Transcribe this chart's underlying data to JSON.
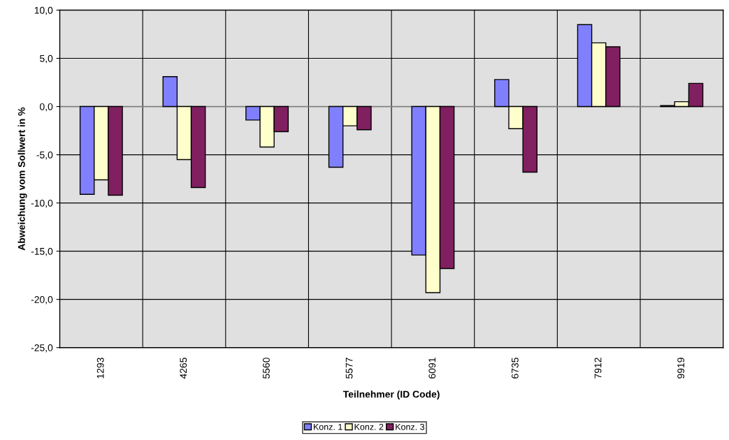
{
  "chart_data": {
    "type": "bar",
    "xlabel": "Teilnehmer (ID Code)",
    "ylabel": "Abweichung vom Sollwert in %",
    "categories": [
      "1293",
      "4265",
      "5560",
      "5577",
      "6091",
      "6735",
      "7912",
      "9919"
    ],
    "series": [
      {
        "name": "Konz. 1",
        "color": "#8080ff",
        "values": [
          -9.1,
          3.1,
          -1.4,
          -6.3,
          -15.4,
          2.8,
          8.5,
          0.1
        ]
      },
      {
        "name": "Konz. 2",
        "color": "#ffffcc",
        "values": [
          -7.6,
          -5.5,
          -4.2,
          -2.0,
          -19.3,
          -2.3,
          6.6,
          0.5
        ]
      },
      {
        "name": "Konz. 3",
        "color": "#802060",
        "values": [
          -9.2,
          -8.4,
          -2.6,
          -2.4,
          -16.8,
          -6.8,
          6.2,
          2.4
        ]
      }
    ],
    "ylim": [
      -25,
      10
    ],
    "yticks": [
      {
        "value": -25,
        "label": "-25,0"
      },
      {
        "value": -20,
        "label": "-20,0"
      },
      {
        "value": -15,
        "label": "-15,0"
      },
      {
        "value": -10,
        "label": "-10,0"
      },
      {
        "value": -5,
        "label": "-5,0"
      },
      {
        "value": 0,
        "label": "0,0"
      },
      {
        "value": 5,
        "label": "5,0"
      },
      {
        "value": 10,
        "label": "10,0"
      }
    ],
    "grid": true,
    "legend": "bottom"
  }
}
